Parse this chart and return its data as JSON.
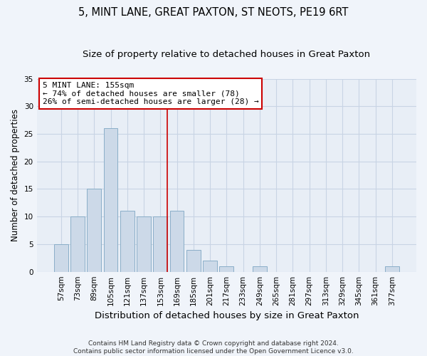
{
  "title": "5, MINT LANE, GREAT PAXTON, ST NEOTS, PE19 6RT",
  "subtitle": "Size of property relative to detached houses in Great Paxton",
  "xlabel": "Distribution of detached houses by size in Great Paxton",
  "ylabel": "Number of detached properties",
  "categories": [
    "57sqm",
    "73sqm",
    "89sqm",
    "105sqm",
    "121sqm",
    "137sqm",
    "153sqm",
    "169sqm",
    "185sqm",
    "201sqm",
    "217sqm",
    "233sqm",
    "249sqm",
    "265sqm",
    "281sqm",
    "297sqm",
    "313sqm",
    "329sqm",
    "345sqm",
    "361sqm",
    "377sqm"
  ],
  "values": [
    5,
    10,
    15,
    26,
    11,
    10,
    10,
    11,
    4,
    2,
    1,
    0,
    1,
    0,
    0,
    0,
    0,
    0,
    0,
    0,
    1
  ],
  "bar_color": "#ccd9e8",
  "bar_edge_color": "#8aaec8",
  "grid_color": "#c8d4e4",
  "background_color": "#e8eef6",
  "figure_background_color": "#f0f4fa",
  "vline_color": "#cc0000",
  "vline_x_index": 6.42,
  "annotation_text": "5 MINT LANE: 155sqm\n← 74% of detached houses are smaller (78)\n26% of semi-detached houses are larger (28) →",
  "annotation_box_facecolor": "#ffffff",
  "annotation_box_edgecolor": "#cc0000",
  "ylim": [
    0,
    35
  ],
  "yticks": [
    0,
    5,
    10,
    15,
    20,
    25,
    30,
    35
  ],
  "footer": "Contains HM Land Registry data © Crown copyright and database right 2024.\nContains public sector information licensed under the Open Government Licence v3.0.",
  "title_fontsize": 10.5,
  "subtitle_fontsize": 9.5,
  "xlabel_fontsize": 9.5,
  "ylabel_fontsize": 8.5,
  "tick_fontsize": 7.5,
  "annotation_fontsize": 8,
  "footer_fontsize": 6.5
}
